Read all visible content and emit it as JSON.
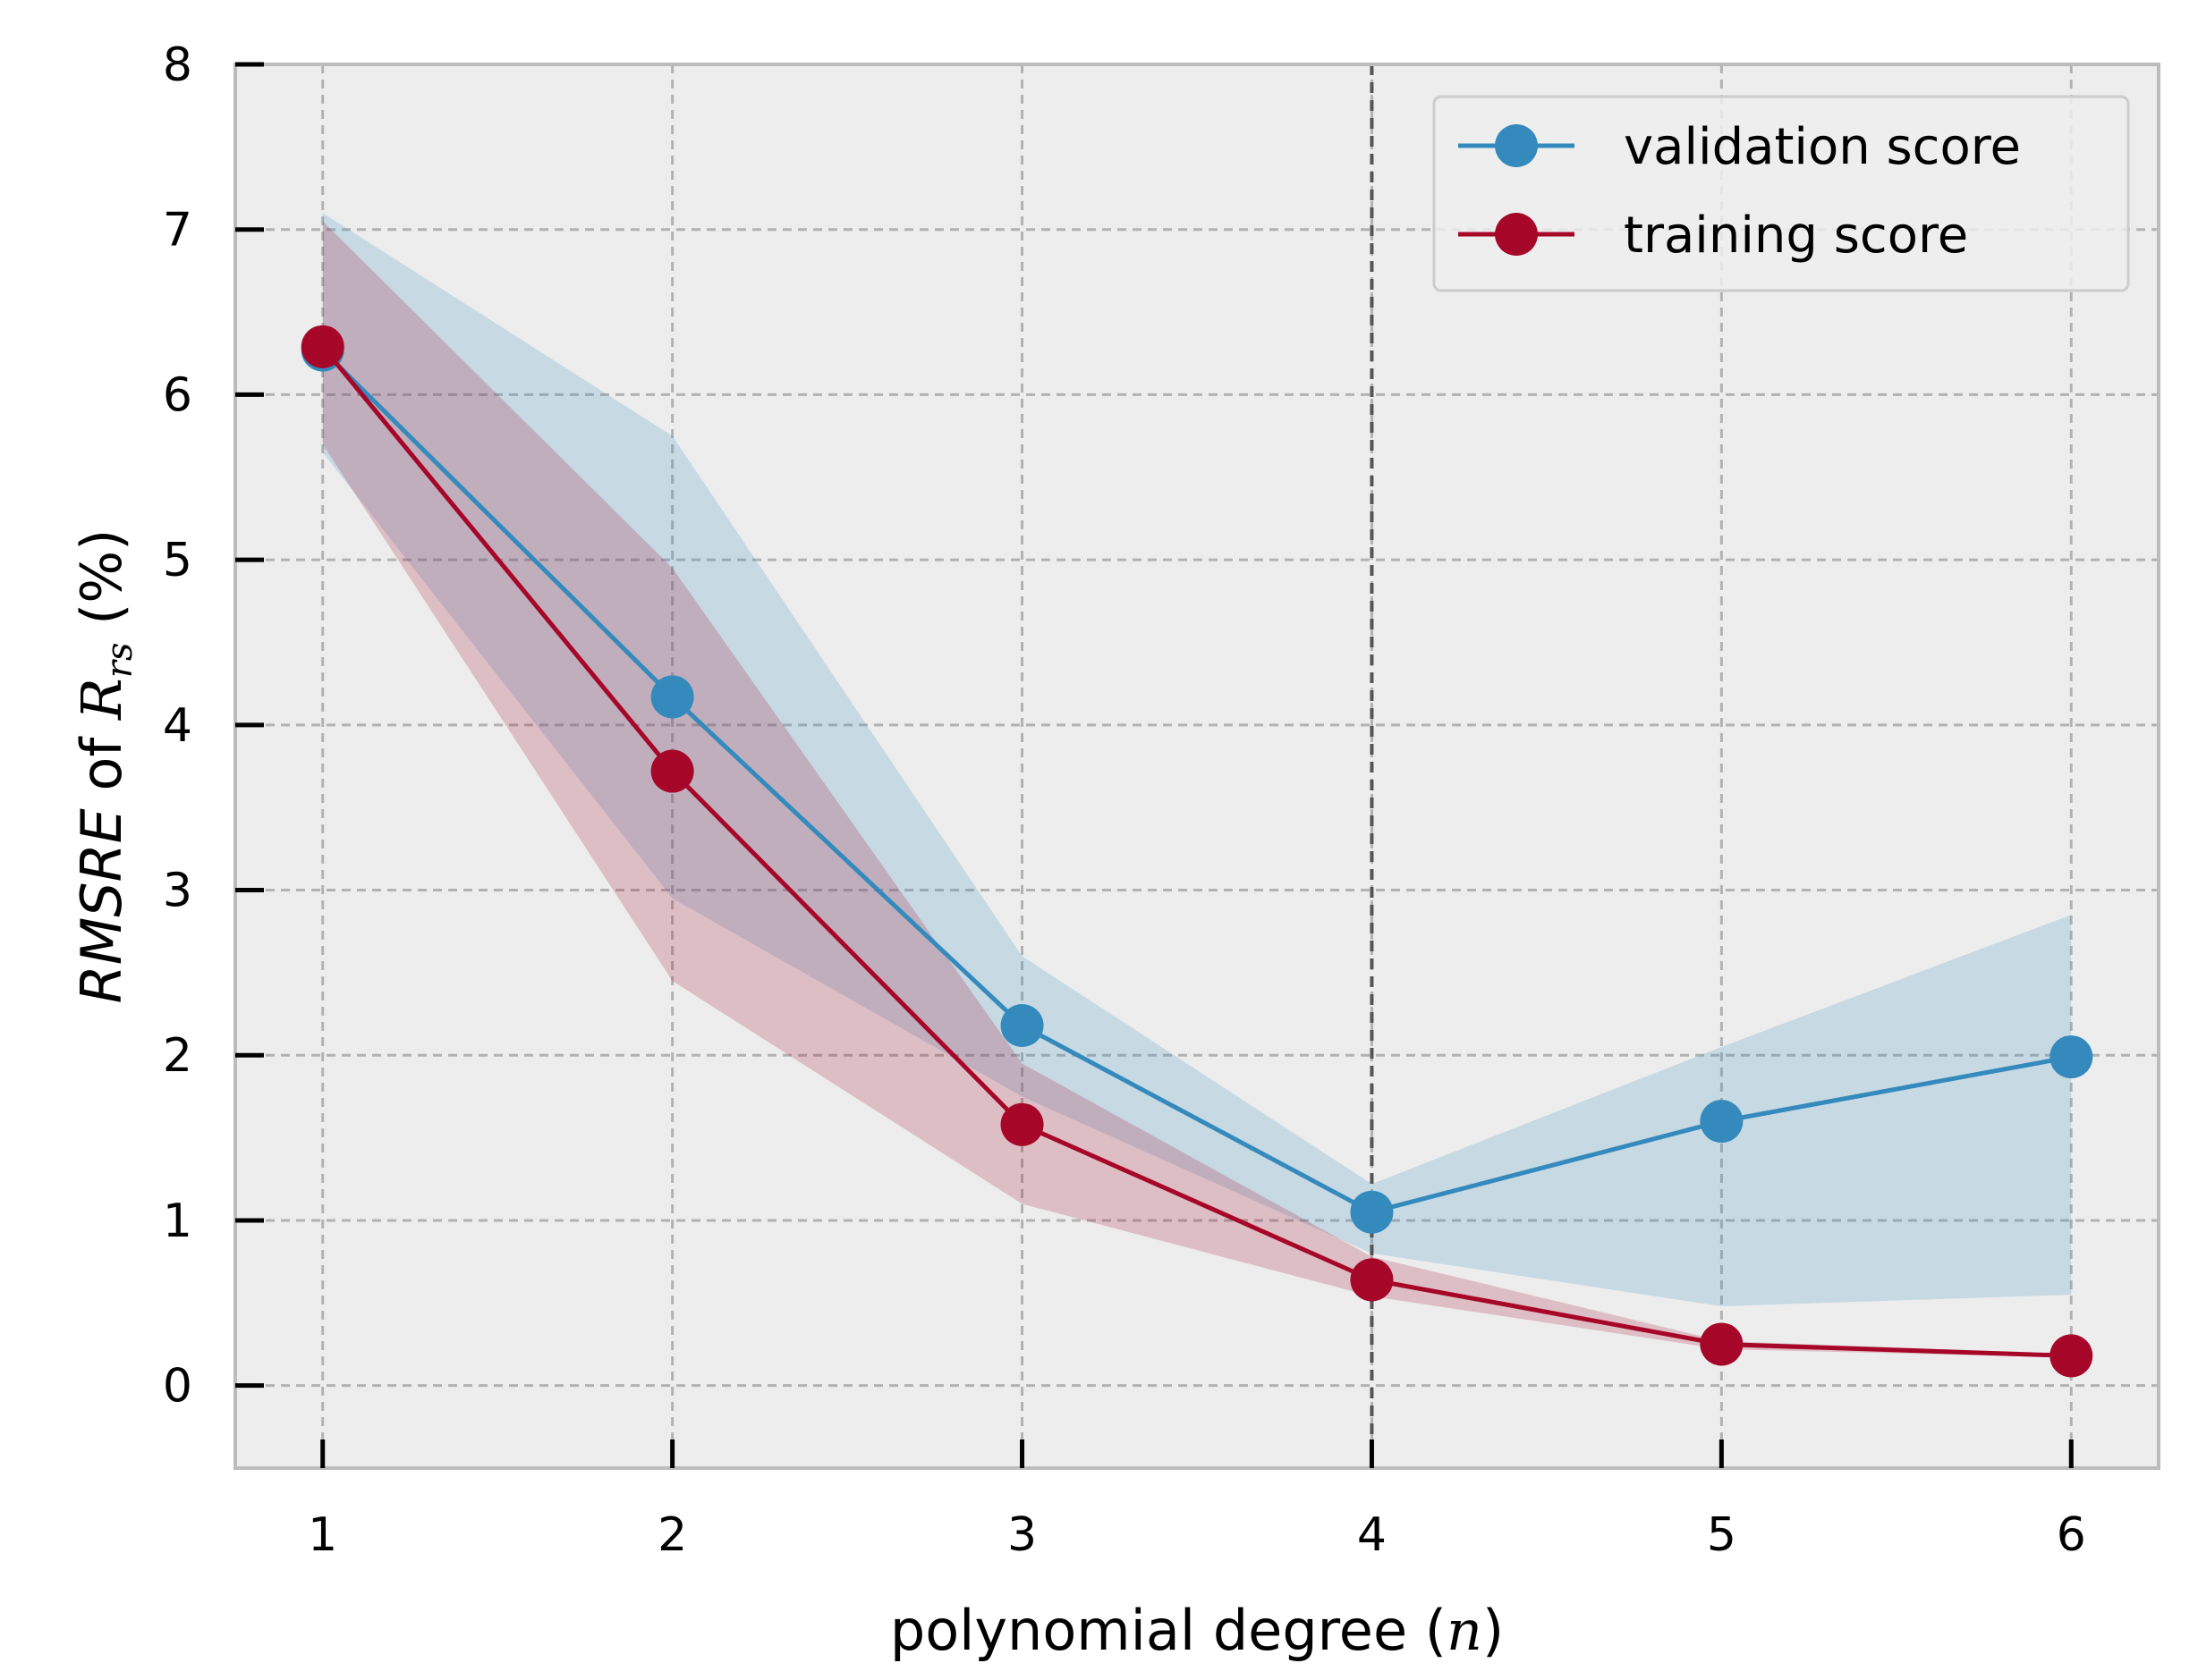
{
  "chart_data": {
    "type": "line",
    "title": "",
    "xlabel": {
      "prefix": "polynomial degree (",
      "var": "n",
      "suffix": ")"
    },
    "ylabel": {
      "metric": "RMSRE",
      "middle": " of ",
      "var": "R",
      "sub": "rs",
      "suffix": " (%)"
    },
    "x": [
      1,
      2,
      3,
      4,
      5,
      6
    ],
    "xlim": [
      0.75,
      6.25
    ],
    "ylim": [
      -0.5,
      8
    ],
    "xticks": [
      "1",
      "2",
      "3",
      "4",
      "5",
      "6"
    ],
    "yticks": [
      "0",
      "1",
      "2",
      "3",
      "4",
      "5",
      "6",
      "7",
      "8"
    ],
    "grid": true,
    "vline_x": 4,
    "legend_position": "top-right",
    "series": [
      {
        "name": "validation score",
        "color": "#348abd",
        "values": [
          6.27,
          4.17,
          2.18,
          1.05,
          1.6,
          1.99
        ],
        "band_upper": [
          7.1,
          5.75,
          2.6,
          1.22,
          2.05,
          2.85
        ],
        "band_lower": [
          5.65,
          2.95,
          1.75,
          0.8,
          0.48,
          0.55
        ]
      },
      {
        "name": "training score",
        "color": "#a60628",
        "values": [
          6.29,
          3.72,
          1.58,
          0.64,
          0.25,
          0.18
        ],
        "band_upper": [
          7.05,
          4.95,
          1.95,
          0.78,
          0.27,
          0.19
        ],
        "band_lower": [
          5.7,
          2.45,
          1.1,
          0.54,
          0.22,
          0.17
        ]
      }
    ]
  }
}
